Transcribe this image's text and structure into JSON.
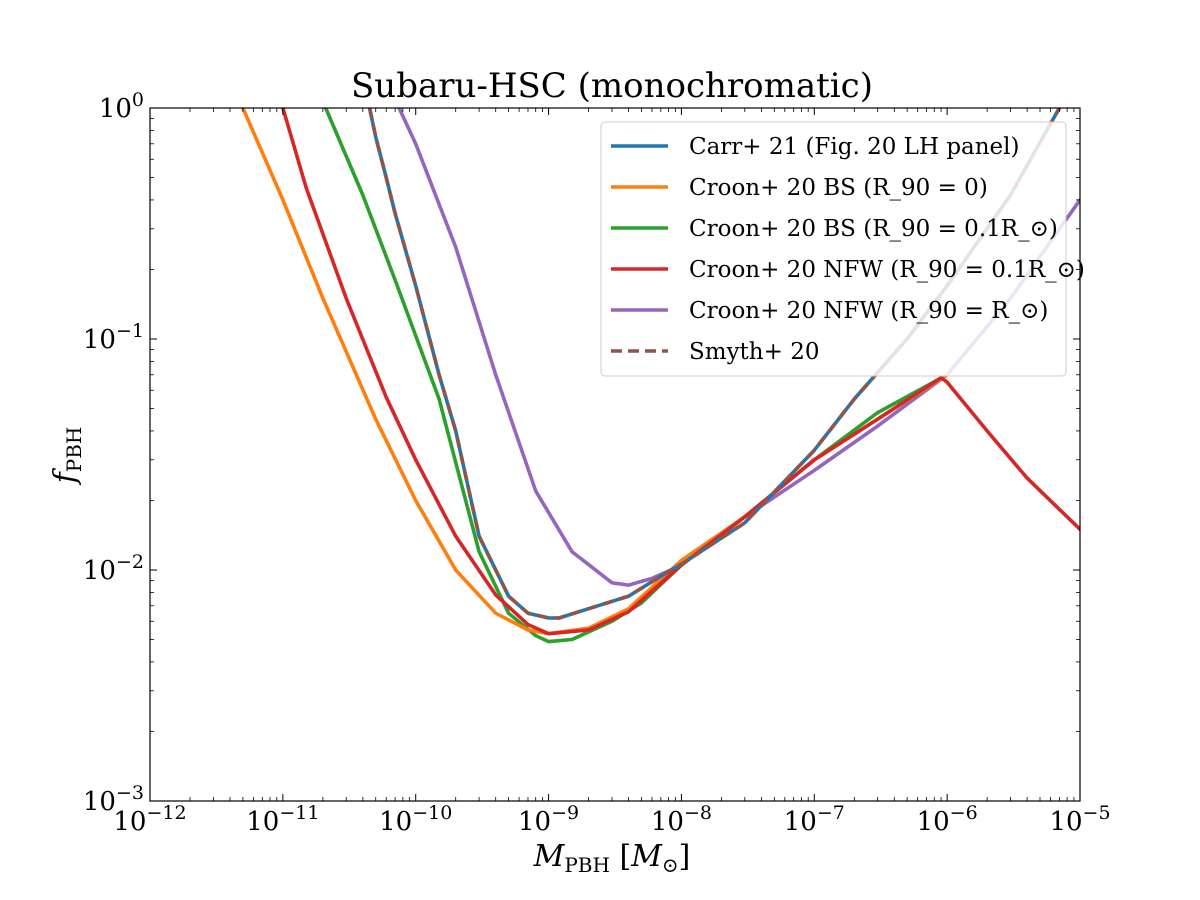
{
  "chart_data": {
    "type": "line",
    "title": "Subaru-HSC (monochromatic)",
    "xlabel": "M_PBH [M_⊙]",
    "ylabel": "f_PBH",
    "xscale": "log",
    "yscale": "log",
    "xlim": [
      1e-12,
      1e-05
    ],
    "ylim": [
      0.001,
      1
    ],
    "xticks": [
      "10^-12",
      "10^-11",
      "10^-10",
      "10^-9",
      "10^-8",
      "10^-7",
      "10^-6",
      "10^-5"
    ],
    "yticks": [
      "10^-3",
      "10^-2",
      "10^-1",
      "10^0"
    ],
    "grid": false,
    "legend_position": "upper-right",
    "series": [
      {
        "name": "Carr+ 21 (Fig. 20 LH panel)",
        "color": "#1f77b4",
        "style": "solid",
        "points": [
          [
            4.5e-11,
            1.0
          ],
          [
            5e-11,
            0.75
          ],
          [
            6e-11,
            0.5
          ],
          [
            7e-11,
            0.35
          ],
          [
            1e-10,
            0.17
          ],
          [
            1.5e-10,
            0.07
          ],
          [
            2e-10,
            0.04
          ],
          [
            3e-10,
            0.014
          ],
          [
            5e-10,
            0.0077
          ],
          [
            7e-10,
            0.0065
          ],
          [
            1e-09,
            0.0062
          ],
          [
            1.2e-09,
            0.0062
          ],
          [
            2e-09,
            0.0068
          ],
          [
            4e-09,
            0.0077
          ],
          [
            7e-09,
            0.0094
          ],
          [
            1e-08,
            0.0106
          ],
          [
            3e-08,
            0.016
          ],
          [
            1e-07,
            0.033
          ],
          [
            2e-07,
            0.055
          ],
          [
            5e-07,
            0.1
          ],
          [
            1e-06,
            0.17
          ],
          [
            3e-06,
            0.42
          ],
          [
            7e-06,
            1.0
          ]
        ]
      },
      {
        "name": "Croon+ 20 BS (R_90 = 0)",
        "color": "#ff7f0e",
        "style": "solid",
        "points": [
          [
            5e-12,
            1.0
          ],
          [
            1e-11,
            0.4
          ],
          [
            2e-11,
            0.15
          ],
          [
            5e-11,
            0.045
          ],
          [
            1e-10,
            0.02
          ],
          [
            2e-10,
            0.01
          ],
          [
            4e-10,
            0.0065
          ],
          [
            7e-10,
            0.0055
          ],
          [
            1e-09,
            0.0053
          ],
          [
            2e-09,
            0.0056
          ],
          [
            4e-09,
            0.0068
          ],
          [
            1e-08,
            0.011
          ],
          [
            3e-08,
            0.017
          ],
          [
            1e-07,
            0.03
          ],
          [
            3e-07,
            0.045
          ],
          [
            1e-06,
            0.07
          ]
        ]
      },
      {
        "name": "Croon+ 20 BS (R_90 = 0.1R_⊙)",
        "color": "#2ca02c",
        "style": "solid",
        "points": [
          [
            2.1e-11,
            1.0
          ],
          [
            4e-11,
            0.42
          ],
          [
            7e-11,
            0.18
          ],
          [
            1.5e-10,
            0.055
          ],
          [
            3e-10,
            0.012
          ],
          [
            5e-10,
            0.0065
          ],
          [
            8e-10,
            0.0052
          ],
          [
            1e-09,
            0.0049
          ],
          [
            1.5e-09,
            0.005
          ],
          [
            3e-09,
            0.006
          ],
          [
            5e-09,
            0.0072
          ],
          [
            1e-08,
            0.0105
          ],
          [
            3e-08,
            0.017
          ],
          [
            1e-07,
            0.03
          ],
          [
            3e-07,
            0.048
          ],
          [
            1e-06,
            0.07
          ]
        ]
      },
      {
        "name": "Croon+ 20 NFW (R_90 = 0.1R_⊙)",
        "color": "#d62728",
        "style": "solid",
        "points": [
          [
            1e-11,
            1.0
          ],
          [
            1.5e-11,
            0.45
          ],
          [
            3e-11,
            0.15
          ],
          [
            6e-11,
            0.056
          ],
          [
            1e-10,
            0.03
          ],
          [
            2e-10,
            0.014
          ],
          [
            4e-10,
            0.0078
          ],
          [
            7e-10,
            0.0058
          ],
          [
            1e-09,
            0.0053
          ],
          [
            2e-09,
            0.0055
          ],
          [
            4e-09,
            0.0066
          ],
          [
            1e-08,
            0.0105
          ],
          [
            3e-08,
            0.017
          ],
          [
            1e-07,
            0.03
          ],
          [
            3e-07,
            0.045
          ],
          [
            9e-07,
            0.068
          ],
          [
            1e-06,
            0.065
          ],
          [
            2e-06,
            0.04
          ],
          [
            4e-06,
            0.025
          ],
          [
            1e-05,
            0.015
          ]
        ]
      },
      {
        "name": "Croon+ 20 NFW (R_90 = R_⊙)",
        "color": "#9467bd",
        "style": "solid",
        "points": [
          [
            7.5e-11,
            1.0
          ],
          [
            1e-10,
            0.7
          ],
          [
            2e-10,
            0.25
          ],
          [
            4e-10,
            0.07
          ],
          [
            8e-10,
            0.022
          ],
          [
            1.5e-09,
            0.012
          ],
          [
            3e-09,
            0.0088
          ],
          [
            4e-09,
            0.0086
          ],
          [
            6e-09,
            0.0092
          ],
          [
            1e-08,
            0.0105
          ],
          [
            3e-08,
            0.017
          ],
          [
            1e-07,
            0.027
          ],
          [
            3e-07,
            0.042
          ],
          [
            1e-06,
            0.07
          ],
          [
            3e-06,
            0.15
          ],
          [
            1e-05,
            0.4
          ]
        ]
      },
      {
        "name": "Smyth+ 20",
        "color": "#8c564b",
        "style": "dashed",
        "points": [
          [
            4.5e-11,
            1.0
          ],
          [
            5e-11,
            0.75
          ],
          [
            6e-11,
            0.5
          ],
          [
            7e-11,
            0.35
          ],
          [
            1e-10,
            0.17
          ],
          [
            1.5e-10,
            0.07
          ],
          [
            2e-10,
            0.04
          ],
          [
            3e-10,
            0.014
          ],
          [
            5e-10,
            0.0077
          ],
          [
            7e-10,
            0.0065
          ],
          [
            1e-09,
            0.0062
          ],
          [
            1.2e-09,
            0.0062
          ],
          [
            2e-09,
            0.0068
          ],
          [
            4e-09,
            0.0077
          ],
          [
            7e-09,
            0.0094
          ],
          [
            1e-08,
            0.0106
          ],
          [
            3e-08,
            0.016
          ],
          [
            1e-07,
            0.033
          ],
          [
            2e-07,
            0.055
          ],
          [
            5e-07,
            0.1
          ],
          [
            1e-06,
            0.17
          ],
          [
            3e-06,
            0.42
          ],
          [
            7e-06,
            1.0
          ]
        ]
      }
    ]
  }
}
